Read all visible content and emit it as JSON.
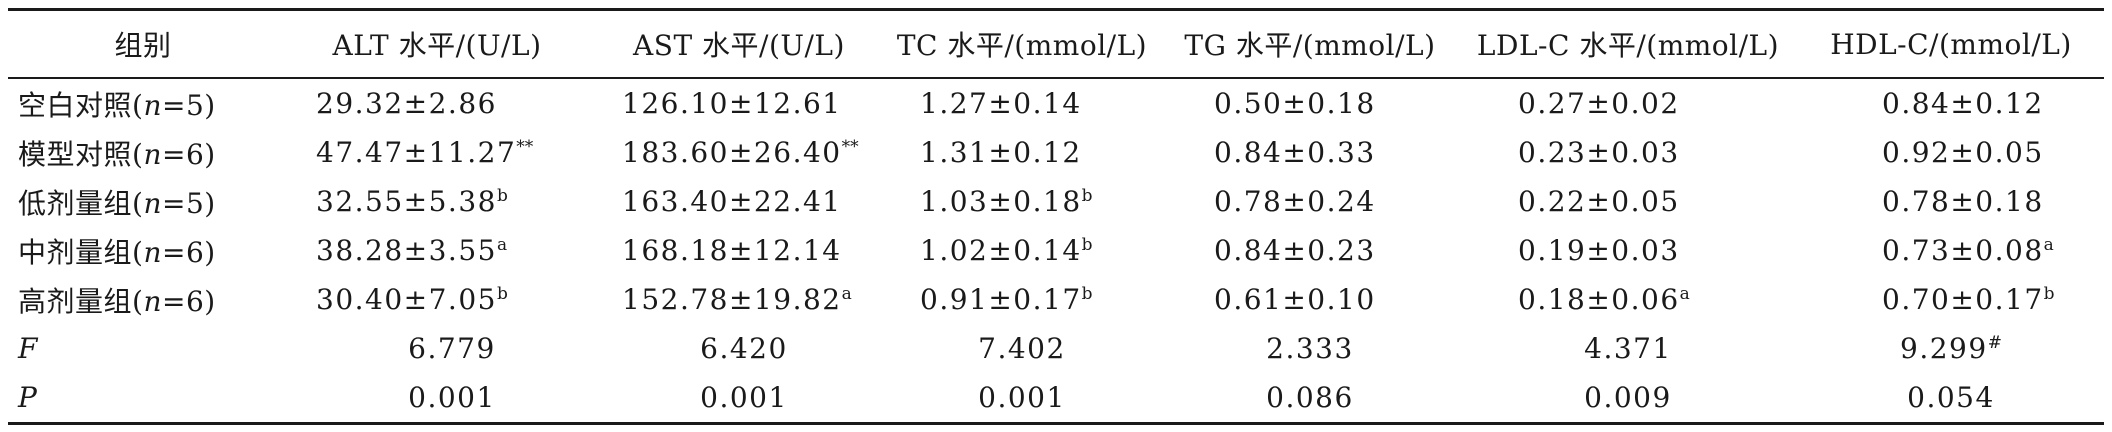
{
  "table": {
    "headers": [
      "组别",
      "ALT 水平/(U/L)",
      "AST 水平/(U/L)",
      "TC 水平/(mmol/L)",
      "TG 水平/(mmol/L)",
      "LDL-C 水平/(mmol/L)",
      "HDL-C/(mmol/L)"
    ],
    "rows": [
      {
        "group": {
          "name": "空白对照(",
          "var": "n",
          "count": "=5)"
        },
        "cells": [
          {
            "value": "29.32±2.86",
            "sup": ""
          },
          {
            "value": "126.10±12.61",
            "sup": ""
          },
          {
            "value": "1.27±0.14",
            "sup": ""
          },
          {
            "value": "0.50±0.18",
            "sup": ""
          },
          {
            "value": "0.27±0.02",
            "sup": ""
          },
          {
            "value": "0.84±0.12",
            "sup": ""
          }
        ]
      },
      {
        "group": {
          "name": "模型对照(",
          "var": "n",
          "count": "=6)"
        },
        "cells": [
          {
            "value": "47.47±11.27",
            "sup": "**"
          },
          {
            "value": "183.60±26.40",
            "sup": "**"
          },
          {
            "value": "1.31±0.12",
            "sup": ""
          },
          {
            "value": "0.84±0.33",
            "sup": ""
          },
          {
            "value": "0.23±0.03",
            "sup": ""
          },
          {
            "value": "0.92±0.05",
            "sup": ""
          }
        ]
      },
      {
        "group": {
          "name": "低剂量组(",
          "var": "n",
          "count": "=5)"
        },
        "cells": [
          {
            "value": "32.55±5.38",
            "sup": "b"
          },
          {
            "value": "163.40±22.41",
            "sup": ""
          },
          {
            "value": "1.03±0.18",
            "sup": "b"
          },
          {
            "value": "0.78±0.24",
            "sup": ""
          },
          {
            "value": "0.22±0.05",
            "sup": ""
          },
          {
            "value": "0.78±0.18",
            "sup": ""
          }
        ]
      },
      {
        "group": {
          "name": "中剂量组(",
          "var": "n",
          "count": "=6)"
        },
        "cells": [
          {
            "value": "38.28±3.55",
            "sup": "a"
          },
          {
            "value": "168.18±12.14",
            "sup": ""
          },
          {
            "value": "1.02±0.14",
            "sup": "b"
          },
          {
            "value": "0.84±0.23",
            "sup": ""
          },
          {
            "value": "0.19±0.03",
            "sup": ""
          },
          {
            "value": "0.73±0.08",
            "sup": "a"
          }
        ]
      },
      {
        "group": {
          "name": "高剂量组(",
          "var": "n",
          "count": "=6)"
        },
        "cells": [
          {
            "value": "30.40±7.05",
            "sup": "b"
          },
          {
            "value": "152.78±19.82",
            "sup": "a"
          },
          {
            "value": "0.91±0.17",
            "sup": "b"
          },
          {
            "value": "0.61±0.10",
            "sup": ""
          },
          {
            "value": "0.18±0.06",
            "sup": "a"
          },
          {
            "value": "0.70±0.17",
            "sup": "b"
          }
        ]
      }
    ],
    "stats": [
      {
        "label": "F",
        "cells": [
          {
            "value": "6.779",
            "sup": ""
          },
          {
            "value": "6.420",
            "sup": ""
          },
          {
            "value": "7.402",
            "sup": ""
          },
          {
            "value": "2.333",
            "sup": ""
          },
          {
            "value": "4.371",
            "sup": ""
          },
          {
            "value": "9.299",
            "sup": "#"
          }
        ]
      },
      {
        "label": "P",
        "cells": [
          {
            "value": "0.001",
            "sup": ""
          },
          {
            "value": "0.001",
            "sup": ""
          },
          {
            "value": "0.001",
            "sup": ""
          },
          {
            "value": "0.086",
            "sup": ""
          },
          {
            "value": "0.009",
            "sup": ""
          },
          {
            "value": "0.054",
            "sup": ""
          }
        ]
      }
    ]
  }
}
